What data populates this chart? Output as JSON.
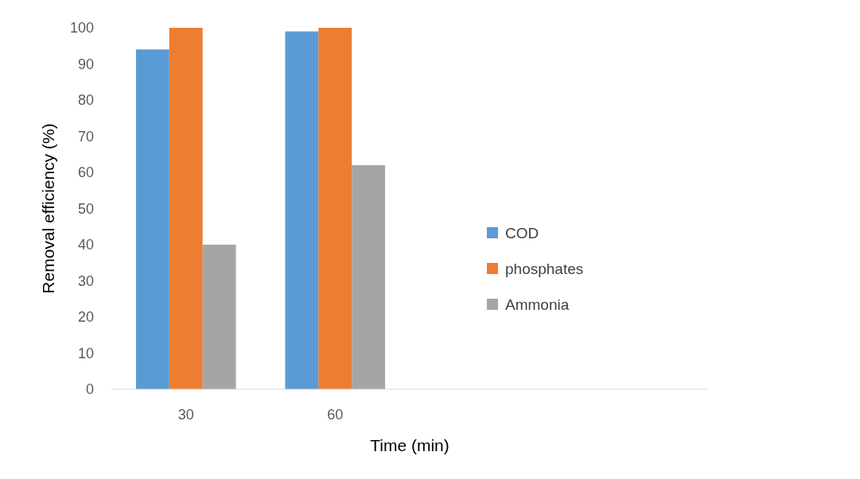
{
  "chart_data": {
    "type": "bar",
    "xlabel": "Time (min)",
    "ylabel": "Removal efficiency (%)",
    "categories": [
      "30",
      "60",
      null,
      null
    ],
    "series": [
      {
        "name": "COD",
        "color": "#5b9bd5",
        "values": [
          94,
          99,
          null,
          null
        ]
      },
      {
        "name": "phosphates",
        "color": "#ed7d31",
        "values": [
          100,
          100,
          null,
          null
        ]
      },
      {
        "name": "Ammonia",
        "color": "#a5a5a5",
        "values": [
          40,
          62,
          null,
          null
        ]
      }
    ],
    "ylim": [
      0,
      100
    ],
    "yticks": [
      0,
      10,
      20,
      30,
      40,
      50,
      60,
      70,
      80,
      90,
      100
    ],
    "grid": false,
    "legend": "right"
  }
}
